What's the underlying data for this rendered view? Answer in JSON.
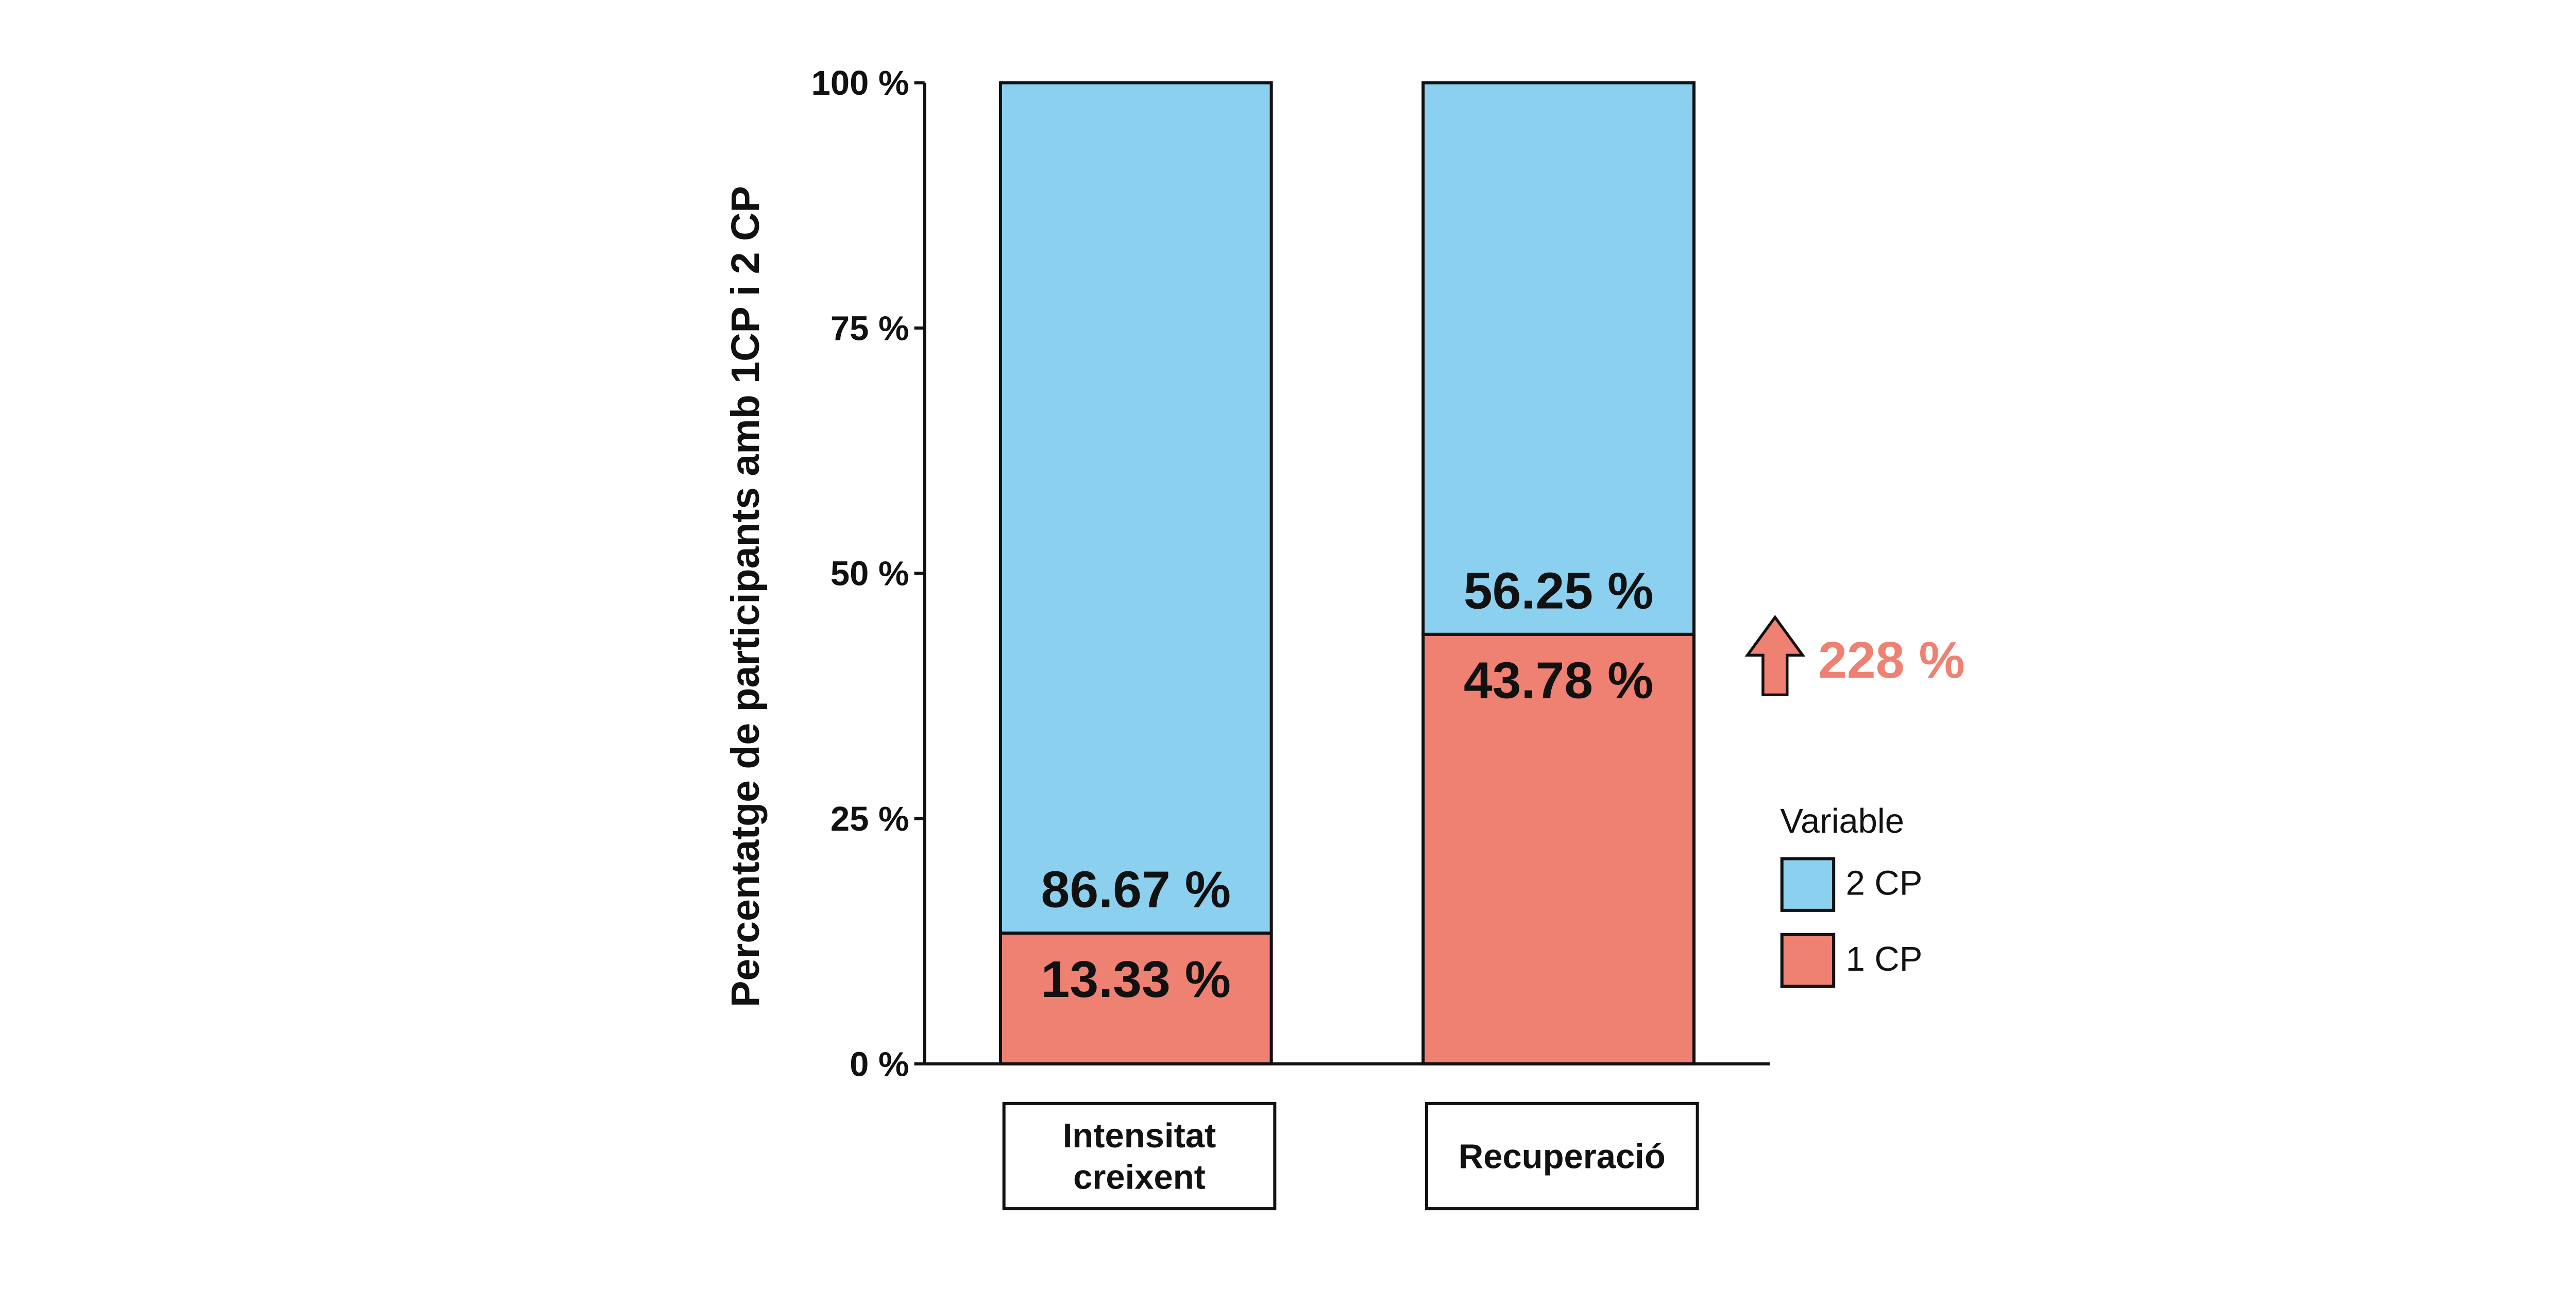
{
  "chart_data": {
    "type": "bar",
    "stacked": true,
    "categories": [
      "Intensitat\ncreixent",
      "Recuperació"
    ],
    "series": [
      {
        "name": "1 CP",
        "values": [
          13.33,
          43.78
        ],
        "labels": [
          "13.33 %",
          "43.78 %"
        ],
        "color": "#EF8172"
      },
      {
        "name": "2 CP",
        "values": [
          86.67,
          56.25
        ],
        "labels": [
          "86.67 %",
          "56.25 %"
        ],
        "color": "#8CD0F0"
      }
    ],
    "ylabel": "Percentatge de participants amb 1CP i 2 CP",
    "xlabel": "",
    "ylim": [
      0,
      100
    ],
    "yticks": [
      {
        "value": 0,
        "label": "0 %"
      },
      {
        "value": 25,
        "label": "25 %"
      },
      {
        "value": 50,
        "label": "50 %"
      },
      {
        "value": 75,
        "label": "75 %"
      },
      {
        "value": 100,
        "label": "100 %"
      }
    ],
    "legend": {
      "title": "Variable",
      "position": "right",
      "items": [
        {
          "label": "2 CP",
          "color": "#8CD0F0"
        },
        {
          "label": "1 CP",
          "color": "#EF8172"
        }
      ]
    },
    "annotation": {
      "text": "228 %",
      "direction": "up",
      "color": "#EF8172",
      "category_index": 1,
      "at_value": 43.78
    }
  }
}
